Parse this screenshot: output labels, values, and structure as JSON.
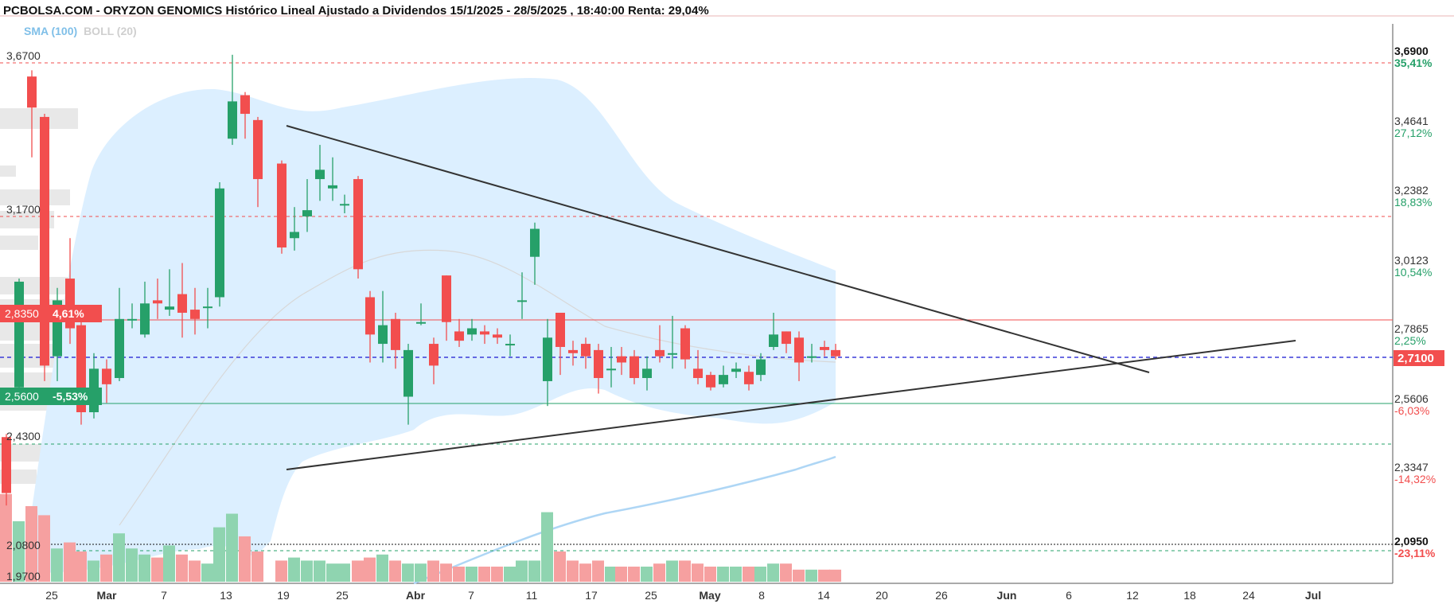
{
  "header": {
    "title": "PCBOLSA.COM - ORYZON GENOMICS Histórico Lineal Ajustado a Dividendos 15/1/2025 - 28/5/2025 , 18:40:00 Renta: 29,04%",
    "legend_sma": "SMA (100)",
    "legend_boll": "BOLL (20)"
  },
  "colors": {
    "up": "#26a069",
    "down": "#f24e4e",
    "boll_fill": "#dcefff",
    "sma": "#aed6f5",
    "trend": "#333333"
  },
  "chart_data": {
    "type": "candlestick",
    "title": "PCBOLSA.COM - ORYZON GENOMICS Histórico Lineal Ajustado a Dividendos 15/1/2025 - 28/5/2025 , 18:40:00 Renta: 29,04%",
    "price_range": [
      1.97,
      3.69
    ],
    "last_price": "2,7100",
    "x_tick_labels": [
      "25",
      "Mar",
      "7",
      "13",
      "19",
      "25",
      "Abr",
      "7",
      "11",
      "17",
      "25",
      "May",
      "8",
      "14",
      "20",
      "26",
      "Jun",
      "6",
      "12",
      "18",
      "24",
      "Jul"
    ],
    "right_axis": [
      {
        "price": "3,6900",
        "pct": "35,41%",
        "bold": true,
        "color": "#26a069"
      },
      {
        "price": "3,4641",
        "pct": "27,12%",
        "color": "#26a069"
      },
      {
        "price": "3,2382",
        "pct": "18,83%",
        "color": "#26a069"
      },
      {
        "price": "3,0123",
        "pct": "10,54%",
        "color": "#26a069"
      },
      {
        "price": "2,7865",
        "pct": "2,25%",
        "color": "#26a069"
      },
      {
        "price": "2,5606",
        "pct": "-6,03%",
        "color": "#f24e4e"
      },
      {
        "price": "2,3347",
        "pct": "-14,32%",
        "color": "#f24e4e"
      },
      {
        "price": "2,0950",
        "pct": "-23,11%",
        "bold": true,
        "color": "#f24e4e"
      }
    ],
    "left_levels": [
      "3,6700",
      "3,1700",
      "2,4300",
      "2,0800",
      "1,9700"
    ],
    "badges": [
      {
        "price": "2,8350",
        "pct": "4,61%",
        "color": "#f24e4e"
      },
      {
        "price": "2,5600",
        "pct": "-5,53%",
        "color": "#26a069"
      }
    ],
    "candles": [
      {
        "x": 8,
        "o": 2.44,
        "c": 2.26,
        "h": 2.45,
        "l": 2.22
      },
      {
        "x": 24,
        "o": 2.6,
        "c": 2.94,
        "h": 2.95,
        "l": 2.55
      },
      {
        "x": 40,
        "o": 3.6,
        "c": 3.5,
        "h": 3.62,
        "l": 3.34
      },
      {
        "x": 56,
        "o": 3.47,
        "c": 2.67,
        "h": 3.48,
        "l": 2.62
      },
      {
        "x": 72,
        "o": 2.7,
        "c": 2.88,
        "h": 2.92,
        "l": 2.62
      },
      {
        "x": 88,
        "o": 2.95,
        "c": 2.79,
        "h": 3.08,
        "l": 2.74
      },
      {
        "x": 102,
        "o": 2.8,
        "c": 2.52,
        "h": 2.82,
        "l": 2.48
      },
      {
        "x": 118,
        "o": 2.52,
        "c": 2.66,
        "h": 2.71,
        "l": 2.5
      },
      {
        "x": 134,
        "o": 2.66,
        "c": 2.61,
        "h": 2.69,
        "l": 2.55
      },
      {
        "x": 150,
        "o": 2.63,
        "c": 2.82,
        "h": 2.92,
        "l": 2.62
      },
      {
        "x": 166,
        "o": 2.82,
        "c": 2.82,
        "h": 2.87,
        "l": 2.79
      },
      {
        "x": 182,
        "o": 2.77,
        "c": 2.87,
        "h": 2.94,
        "l": 2.76
      },
      {
        "x": 198,
        "o": 2.88,
        "c": 2.87,
        "h": 2.95,
        "l": 2.82
      },
      {
        "x": 213,
        "o": 2.85,
        "c": 2.86,
        "h": 2.98,
        "l": 2.83
      },
      {
        "x": 229,
        "o": 2.9,
        "c": 2.84,
        "h": 3.0,
        "l": 2.76
      },
      {
        "x": 245,
        "o": 2.85,
        "c": 2.82,
        "h": 2.92,
        "l": 2.77
      },
      {
        "x": 261,
        "o": 2.86,
        "c": 2.86,
        "h": 2.92,
        "l": 2.79
      },
      {
        "x": 276,
        "o": 2.89,
        "c": 3.24,
        "h": 3.26,
        "l": 2.86
      },
      {
        "x": 292,
        "o": 3.4,
        "c": 3.52,
        "h": 3.67,
        "l": 3.38
      },
      {
        "x": 308,
        "o": 3.54,
        "c": 3.48,
        "h": 3.55,
        "l": 3.4
      },
      {
        "x": 324,
        "o": 3.46,
        "c": 3.27,
        "h": 3.47,
        "l": 3.18
      },
      {
        "x": 354,
        "o": 3.32,
        "c": 3.05,
        "h": 3.33,
        "l": 3.03
      },
      {
        "x": 370,
        "o": 3.08,
        "c": 3.1,
        "h": 3.18,
        "l": 3.04
      },
      {
        "x": 386,
        "o": 3.15,
        "c": 3.17,
        "h": 3.27,
        "l": 3.1
      },
      {
        "x": 402,
        "o": 3.27,
        "c": 3.3,
        "h": 3.38,
        "l": 3.2
      },
      {
        "x": 418,
        "o": 3.24,
        "c": 3.25,
        "h": 3.34,
        "l": 3.2
      },
      {
        "x": 433,
        "o": 3.19,
        "c": 3.19,
        "h": 3.22,
        "l": 3.16
      },
      {
        "x": 450,
        "o": 3.27,
        "c": 2.98,
        "h": 3.28,
        "l": 2.95
      },
      {
        "x": 465,
        "o": 2.89,
        "c": 2.77,
        "h": 2.91,
        "l": 2.68
      },
      {
        "x": 481,
        "o": 2.74,
        "c": 2.8,
        "h": 2.91,
        "l": 2.68
      },
      {
        "x": 497,
        "o": 2.82,
        "c": 2.72,
        "h": 2.84,
        "l": 2.66
      },
      {
        "x": 513,
        "o": 2.57,
        "c": 2.72,
        "h": 2.74,
        "l": 2.48
      },
      {
        "x": 529,
        "o": 2.81,
        "c": 2.81,
        "h": 2.87,
        "l": 2.8
      },
      {
        "x": 545,
        "o": 2.74,
        "c": 2.67,
        "h": 2.76,
        "l": 2.61
      },
      {
        "x": 561,
        "o": 2.96,
        "c": 2.81,
        "h": 2.96,
        "l": 2.75
      },
      {
        "x": 577,
        "o": 2.78,
        "c": 2.75,
        "h": 2.82,
        "l": 2.73
      },
      {
        "x": 593,
        "o": 2.77,
        "c": 2.79,
        "h": 2.82,
        "l": 2.75
      },
      {
        "x": 609,
        "o": 2.78,
        "c": 2.77,
        "h": 2.8,
        "l": 2.74
      },
      {
        "x": 625,
        "o": 2.77,
        "c": 2.76,
        "h": 2.79,
        "l": 2.74
      },
      {
        "x": 641,
        "o": 2.74,
        "c": 2.74,
        "h": 2.77,
        "l": 2.7
      },
      {
        "x": 656,
        "o": 2.88,
        "c": 2.88,
        "h": 2.97,
        "l": 2.82
      },
      {
        "x": 672,
        "o": 3.02,
        "c": 3.11,
        "h": 3.13,
        "l": 2.93
      },
      {
        "x": 688,
        "o": 2.62,
        "c": 2.76,
        "h": 2.82,
        "l": 2.54
      },
      {
        "x": 704,
        "o": 2.84,
        "c": 2.73,
        "h": 2.84,
        "l": 2.64
      },
      {
        "x": 720,
        "o": 2.72,
        "c": 2.71,
        "h": 2.75,
        "l": 2.67
      },
      {
        "x": 736,
        "o": 2.74,
        "c": 2.7,
        "h": 2.76,
        "l": 2.66
      },
      {
        "x": 752,
        "o": 2.72,
        "c": 2.63,
        "h": 2.74,
        "l": 2.58
      },
      {
        "x": 768,
        "o": 2.66,
        "c": 2.66,
        "h": 2.73,
        "l": 2.6
      },
      {
        "x": 781,
        "o": 2.7,
        "c": 2.68,
        "h": 2.73,
        "l": 2.64
      },
      {
        "x": 797,
        "o": 2.7,
        "c": 2.63,
        "h": 2.72,
        "l": 2.61
      },
      {
        "x": 813,
        "o": 2.63,
        "c": 2.66,
        "h": 2.7,
        "l": 2.59
      },
      {
        "x": 829,
        "o": 2.72,
        "c": 2.7,
        "h": 2.8,
        "l": 2.68
      },
      {
        "x": 845,
        "o": 2.71,
        "c": 2.71,
        "h": 2.83,
        "l": 2.66
      },
      {
        "x": 861,
        "o": 2.79,
        "c": 2.69,
        "h": 2.8,
        "l": 2.66
      },
      {
        "x": 877,
        "o": 2.66,
        "c": 2.63,
        "h": 2.72,
        "l": 2.61
      },
      {
        "x": 893,
        "o": 2.64,
        "c": 2.6,
        "h": 2.65,
        "l": 2.59
      },
      {
        "x": 909,
        "o": 2.61,
        "c": 2.64,
        "h": 2.67,
        "l": 2.6
      },
      {
        "x": 925,
        "o": 2.65,
        "c": 2.66,
        "h": 2.68,
        "l": 2.63
      },
      {
        "x": 941,
        "o": 2.65,
        "c": 2.61,
        "h": 2.67,
        "l": 2.59
      },
      {
        "x": 956,
        "o": 2.64,
        "c": 2.69,
        "h": 2.71,
        "l": 2.62
      },
      {
        "x": 972,
        "o": 2.73,
        "c": 2.77,
        "h": 2.84,
        "l": 2.72
      },
      {
        "x": 988,
        "o": 2.78,
        "c": 2.74,
        "h": 2.78,
        "l": 2.71
      },
      {
        "x": 1004,
        "o": 2.76,
        "c": 2.68,
        "h": 2.78,
        "l": 2.62
      },
      {
        "x": 1020,
        "o": 2.7,
        "c": 2.7,
        "h": 2.74,
        "l": 2.68
      },
      {
        "x": 1036,
        "o": 2.73,
        "c": 2.72,
        "h": 2.75,
        "l": 2.7
      },
      {
        "x": 1050,
        "o": 2.72,
        "c": 2.7,
        "h": 2.74,
        "l": 2.69
      }
    ]
  }
}
